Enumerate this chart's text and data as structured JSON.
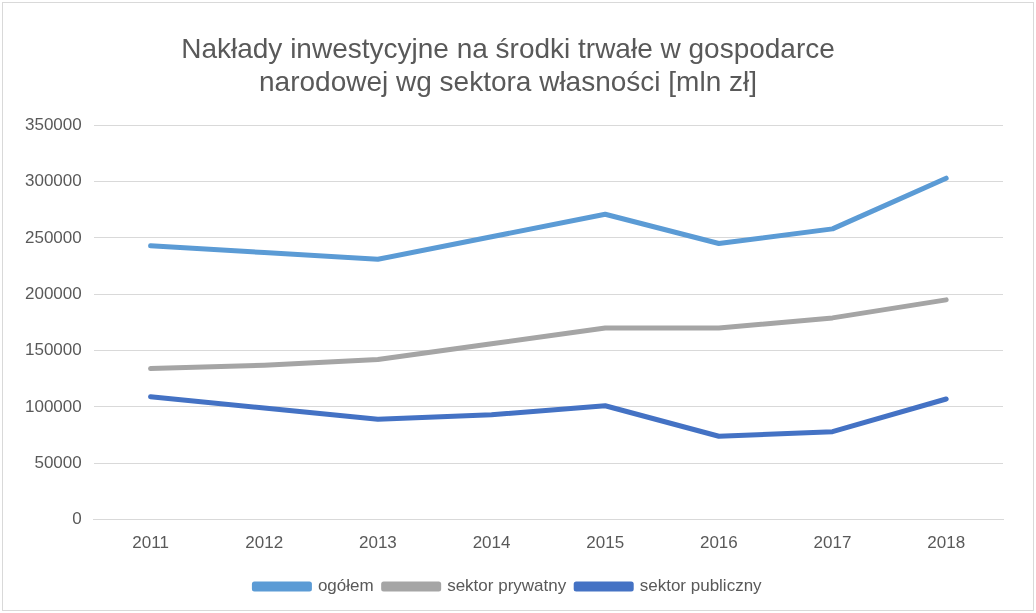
{
  "chart_data": {
    "type": "line",
    "title": "Nakłady inwestycyjne na środki trwałe w gospodarce narodowej wg sektora własności [mln zł]",
    "categories": [
      "2011",
      "2012",
      "2013",
      "2014",
      "2015",
      "2016",
      "2017",
      "2018"
    ],
    "series": [
      {
        "name": "ogółem",
        "color": "#5b9bd5",
        "values": [
          243000,
          237000,
          231000,
          251000,
          271000,
          245000,
          258000,
          303000
        ]
      },
      {
        "name": "sektor prywatny",
        "color": "#a5a5a5",
        "values": [
          134000,
          137000,
          142000,
          156000,
          170000,
          170000,
          179000,
          195000
        ]
      },
      {
        "name": "sektor publiczny",
        "color": "#4472c4",
        "values": [
          109000,
          99000,
          89000,
          93000,
          101000,
          74000,
          78000,
          107000
        ]
      }
    ],
    "ylim": [
      0,
      350000
    ],
    "yticks": [
      0,
      50000,
      100000,
      150000,
      200000,
      250000,
      300000,
      350000
    ],
    "grid": "y",
    "legend": "bottom",
    "marker": "none",
    "line_style": "solid"
  }
}
